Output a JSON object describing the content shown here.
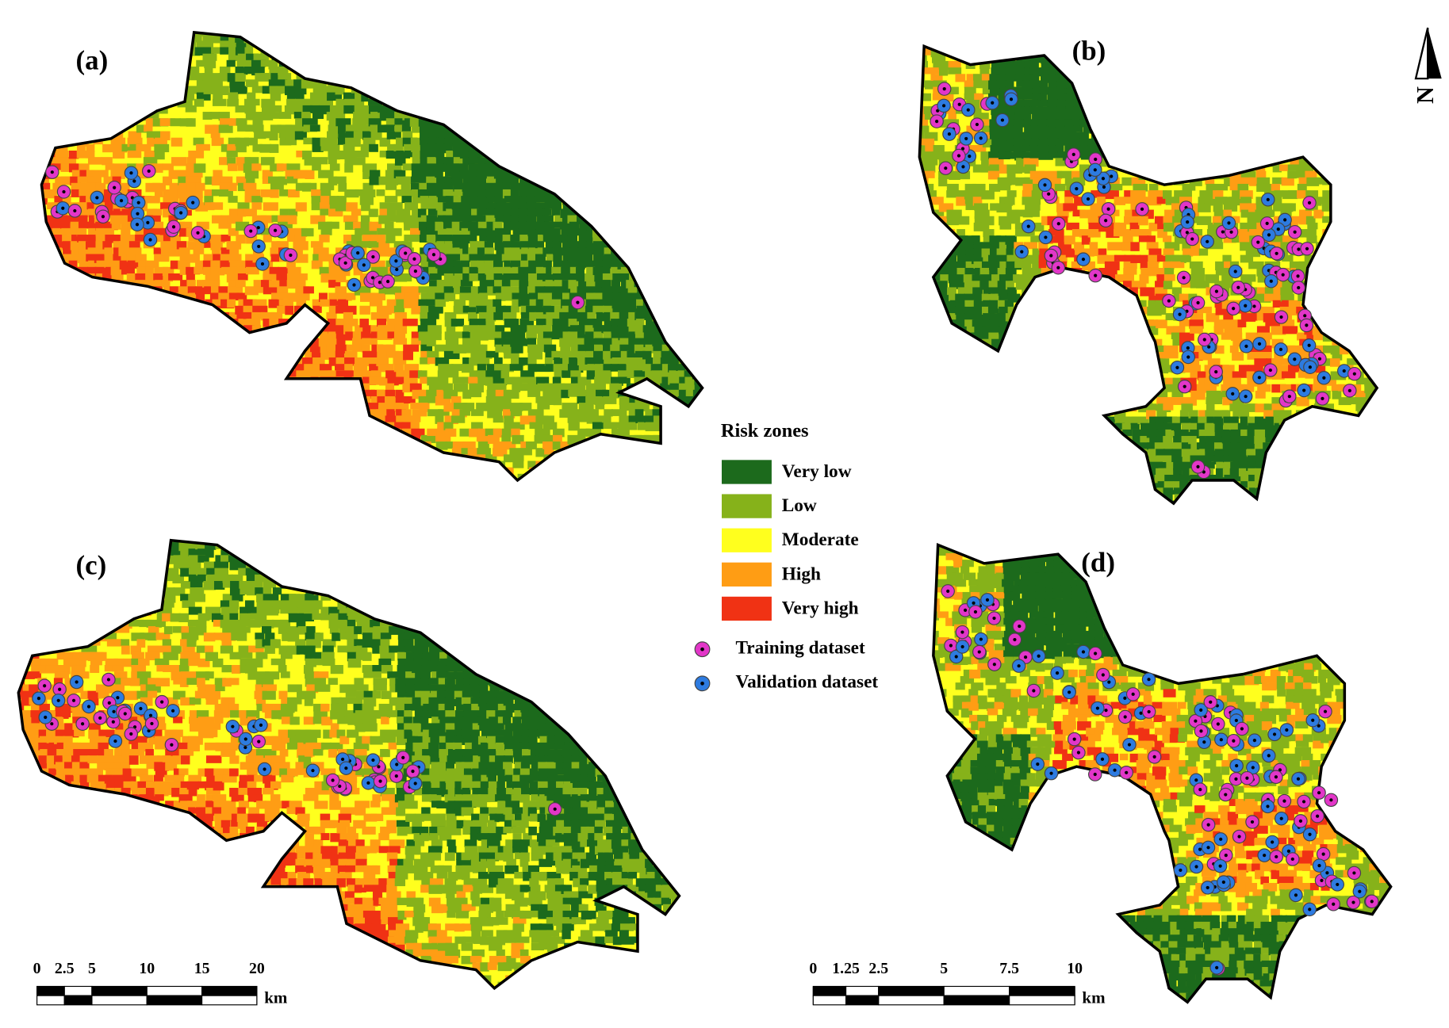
{
  "panels": [
    {
      "label": "(a)"
    },
    {
      "label": "(b)"
    },
    {
      "label": "(c)"
    },
    {
      "label": "(d)"
    }
  ],
  "legend": {
    "title": "Risk zones",
    "zones": [
      {
        "label": "Very low",
        "color": "#1c6a1c"
      },
      {
        "label": "Low",
        "color": "#86b21a"
      },
      {
        "label": "Moderate",
        "color": "#ffff1e"
      },
      {
        "label": "High",
        "color": "#ff9d14"
      },
      {
        "label": "Very high",
        "color": "#f03214"
      }
    ],
    "points": [
      {
        "label": "Training dataset",
        "color": "#e236c8"
      },
      {
        "label": "Validation dataset",
        "color": "#2d7be0"
      }
    ]
  },
  "scale_bars": [
    {
      "ticks": [
        0,
        2.5,
        5,
        10,
        15,
        20
      ],
      "unit": "km"
    },
    {
      "ticks": [
        0,
        1.25,
        2.5,
        5,
        7.5,
        10
      ],
      "unit": "km"
    }
  ],
  "north_arrow": "N"
}
